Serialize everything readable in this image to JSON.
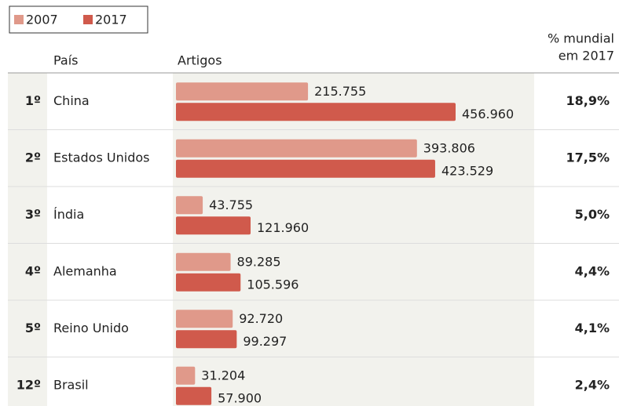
{
  "chart_data": {
    "type": "bar",
    "orientation": "horizontal",
    "column_headers": [
      "País",
      "Artigos"
    ],
    "share_header": [
      "% mundial",
      "em 2017"
    ],
    "ranks": [
      "1º",
      "2º",
      "3º",
      "4º",
      "5º",
      "12º"
    ],
    "categories": [
      "China",
      "Estados Unidos",
      "Índia",
      "Alemanha",
      "Reino Unido",
      "Brasil"
    ],
    "series": [
      {
        "name": "2007",
        "color": "#e0998a",
        "values": [
          215755,
          393806,
          43755,
          89285,
          92720,
          31204
        ],
        "value_labels": [
          "215.755",
          "393.806",
          "43.755",
          "89.285",
          "92.720",
          "31.204"
        ]
      },
      {
        "name": "2017",
        "color": "#d05a4c",
        "values": [
          456960,
          423529,
          121960,
          105596,
          99297,
          57900
        ],
        "value_labels": [
          "456.960",
          "423.529",
          "121.960",
          "105.596",
          "99.297",
          "57.900"
        ]
      }
    ],
    "share_labels": [
      "18,9%",
      "17,5%",
      "5,0%",
      "4,4%",
      "4,1%",
      "2,4%"
    ]
  }
}
